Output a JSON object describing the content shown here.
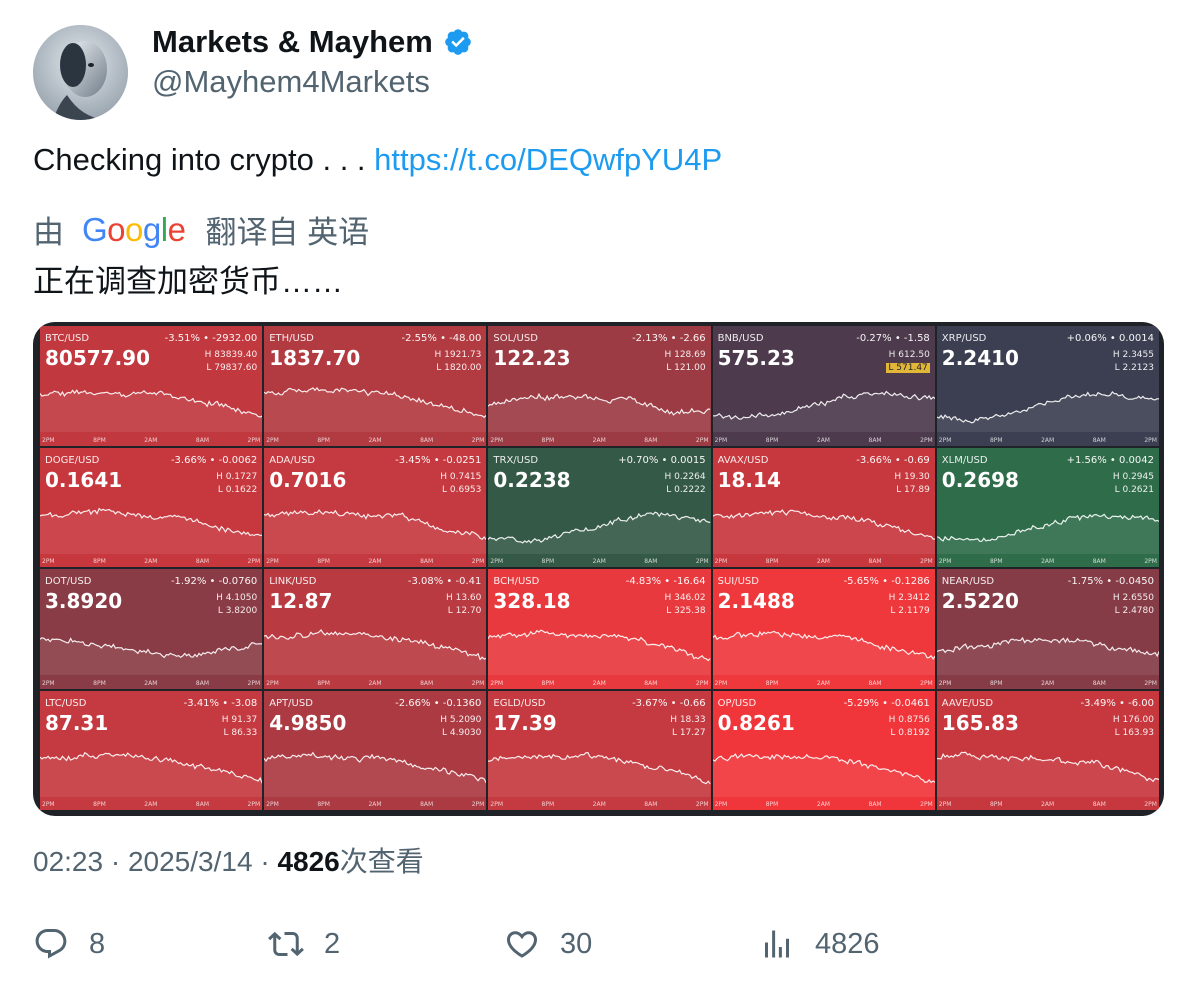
{
  "author": {
    "display_name": "Markets & Mayhem",
    "handle": "@Mayhem4Markets"
  },
  "tweet": {
    "text": "Checking into crypto . . . ",
    "link": "https://t.co/DEQwfpYU4P"
  },
  "translation": {
    "prefix": "由",
    "provider": "Google",
    "suffix": "翻译自 英语",
    "text": "正在调查加密货币……"
  },
  "media": {
    "time_labels": [
      "2PM",
      "8PM",
      "2AM",
      "8AM",
      "2PM"
    ],
    "tiles": [
      {
        "pair": "BTC/USD",
        "change": "-3.51% • -2932.00",
        "price": "80577.90",
        "high": "H 83839.40",
        "low": "L 79837.60",
        "color": "#c1393f",
        "trend": "down",
        "seed": 1
      },
      {
        "pair": "ETH/USD",
        "change": "-2.55% • -48.00",
        "price": "1837.70",
        "high": "H 1921.73",
        "low": "L 1820.00",
        "color": "#b23a41",
        "trend": "down",
        "seed": 2
      },
      {
        "pair": "SOL/USD",
        "change": "-2.13% • -2.66",
        "price": "122.23",
        "high": "H 128.69",
        "low": "L 121.00",
        "color": "#9c3b44",
        "trend": "flat",
        "seed": 3
      },
      {
        "pair": "BNB/USD",
        "change": "-0.27% • -1.58",
        "price": "575.23",
        "high": "H 612.50",
        "low": "L 571.47",
        "low_highlight": true,
        "color": "#4d3a4c",
        "trend": "up",
        "seed": 4
      },
      {
        "pair": "XRP/USD",
        "change": "+0.06% • 0.0014",
        "price": "2.2410",
        "high": "H 2.3455",
        "low": "L 2.2123",
        "color": "#3b3f51",
        "trend": "up",
        "seed": 5
      },
      {
        "pair": "DOGE/USD",
        "change": "-3.66% • -0.0062",
        "price": "0.1641",
        "high": "H 0.1727",
        "low": "L 0.1622",
        "color": "#c7383e",
        "trend": "down",
        "seed": 6
      },
      {
        "pair": "ADA/USD",
        "change": "-3.45% • -0.0251",
        "price": "0.7016",
        "high": "H 0.7415",
        "low": "L 0.6953",
        "color": "#c53a40",
        "trend": "down",
        "seed": 7
      },
      {
        "pair": "TRX/USD",
        "change": "+0.70% • 0.0015",
        "price": "0.2238",
        "high": "H 0.2264",
        "low": "L 0.2222",
        "color": "#355947",
        "trend": "up",
        "seed": 8
      },
      {
        "pair": "AVAX/USD",
        "change": "-3.66% • -0.69",
        "price": "18.14",
        "high": "H 19.30",
        "low": "L 17.89",
        "color": "#c7383e",
        "trend": "down",
        "seed": 9
      },
      {
        "pair": "XLM/USD",
        "change": "+1.56% • 0.0042",
        "price": "0.2698",
        "high": "H 0.2945",
        "low": "L 0.2621",
        "color": "#2f6d4a",
        "trend": "up",
        "seed": 10
      },
      {
        "pair": "DOT/USD",
        "change": "-1.92% • -0.0760",
        "price": "3.8920",
        "high": "H 4.1050",
        "low": "L 3.8200",
        "color": "#8a3c46",
        "trend": "flat",
        "seed": 11
      },
      {
        "pair": "LINK/USD",
        "change": "-3.08% • -0.41",
        "price": "12.87",
        "high": "H 13.60",
        "low": "L 12.70",
        "color": "#b93a41",
        "trend": "down",
        "seed": 12
      },
      {
        "pair": "BCH/USD",
        "change": "-4.83% • -16.64",
        "price": "328.18",
        "high": "H 346.02",
        "low": "L 325.38",
        "color": "#e83a3e",
        "trend": "down",
        "seed": 13
      },
      {
        "pair": "SUI/USD",
        "change": "-5.65% • -0.1286",
        "price": "2.1488",
        "high": "H 2.3412",
        "low": "L 2.1179",
        "color": "#ee383c",
        "trend": "down",
        "seed": 14
      },
      {
        "pair": "NEAR/USD",
        "change": "-1.75% • -0.0450",
        "price": "2.5220",
        "high": "H 2.6550",
        "low": "L 2.4780",
        "color": "#853c47",
        "trend": "flat",
        "seed": 15
      },
      {
        "pair": "LTC/USD",
        "change": "-3.41% • -3.08",
        "price": "87.31",
        "high": "H 91.37",
        "low": "L 86.33",
        "color": "#c53a40",
        "trend": "down",
        "seed": 16
      },
      {
        "pair": "APT/USD",
        "change": "-2.66% • -0.1360",
        "price": "4.9850",
        "high": "H 5.2090",
        "low": "L 4.9030",
        "color": "#ac3a42",
        "trend": "down",
        "seed": 17
      },
      {
        "pair": "EGLD/USD",
        "change": "-3.67% • -0.66",
        "price": "17.39",
        "high": "H 18.33",
        "low": "L 17.27",
        "color": "#c53a40",
        "trend": "down",
        "seed": 18
      },
      {
        "pair": "OP/USD",
        "change": "-5.29% • -0.0461",
        "price": "0.8261",
        "high": "H 0.8756",
        "low": "L 0.8192",
        "color": "#f0363b",
        "trend": "down",
        "seed": 19
      },
      {
        "pair": "AAVE/USD",
        "change": "-3.49% • -6.00",
        "price": "165.83",
        "high": "H 176.00",
        "low": "L 163.93",
        "color": "#c7383e",
        "trend": "down",
        "seed": 20
      }
    ]
  },
  "meta": {
    "time": "02:23",
    "sep1": " · ",
    "date": "2025/3/14",
    "sep2": " · ",
    "views": "4826",
    "views_suffix": "次查看"
  },
  "actions": {
    "replies": "8",
    "retweets": "2",
    "likes": "30",
    "views": "4826"
  },
  "colors": {
    "link": "#1d9bf0",
    "secondary_text": "#536471",
    "verified": "#1d9bf0"
  }
}
